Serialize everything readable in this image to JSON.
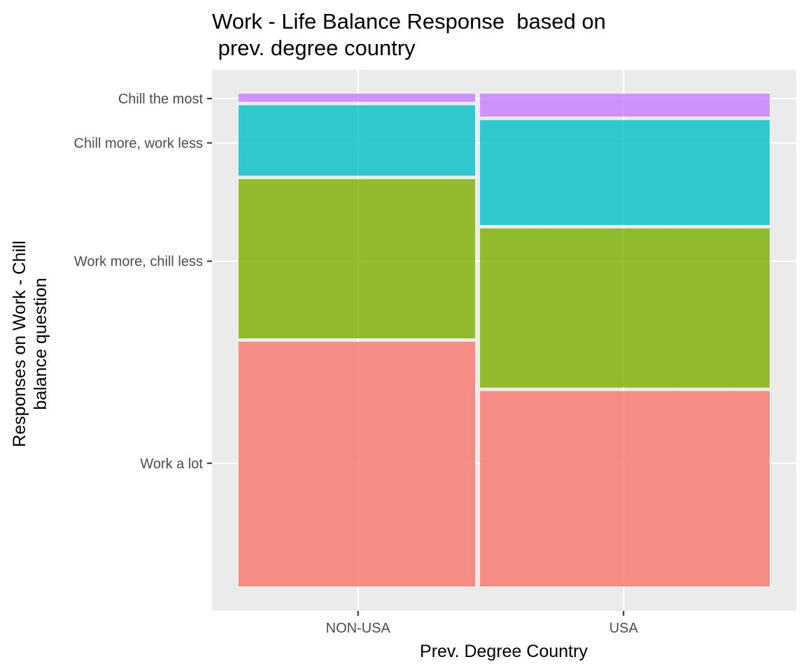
{
  "chart_data": {
    "type": "mosaic",
    "title_lines": [
      "Work - Life Balance Response  based on",
      " prev. degree country"
    ],
    "xlabel": "Prev. Degree Country",
    "ylabel_lines": [
      "Responses on Work - Chill",
      "balance question"
    ],
    "categories": [
      "NON-USA",
      "USA"
    ],
    "category_widths": [
      0.45,
      0.55
    ],
    "y_tick_labels": [
      "Work a lot",
      "Work more, chill less",
      "Chill more, work less",
      "Chill the most"
    ],
    "y_tick_positions": [
      0.25,
      0.66,
      0.9,
      0.99
    ],
    "series": [
      {
        "name": "Work a lot",
        "color": "#F8766D",
        "values": [
          0.5,
          0.4
        ]
      },
      {
        "name": "Work more, chill less",
        "color": "#7CAE00",
        "values": [
          0.33,
          0.33
        ]
      },
      {
        "name": "Chill more, work less",
        "color": "#00BFC4",
        "values": [
          0.15,
          0.22
        ]
      },
      {
        "name": "Chill the most",
        "color": "#C77CFF",
        "values": [
          0.02,
          0.05
        ]
      }
    ],
    "bar_opacity": 0.8,
    "panel_background": "#EBEBEB",
    "grid": true,
    "legend": "none"
  }
}
